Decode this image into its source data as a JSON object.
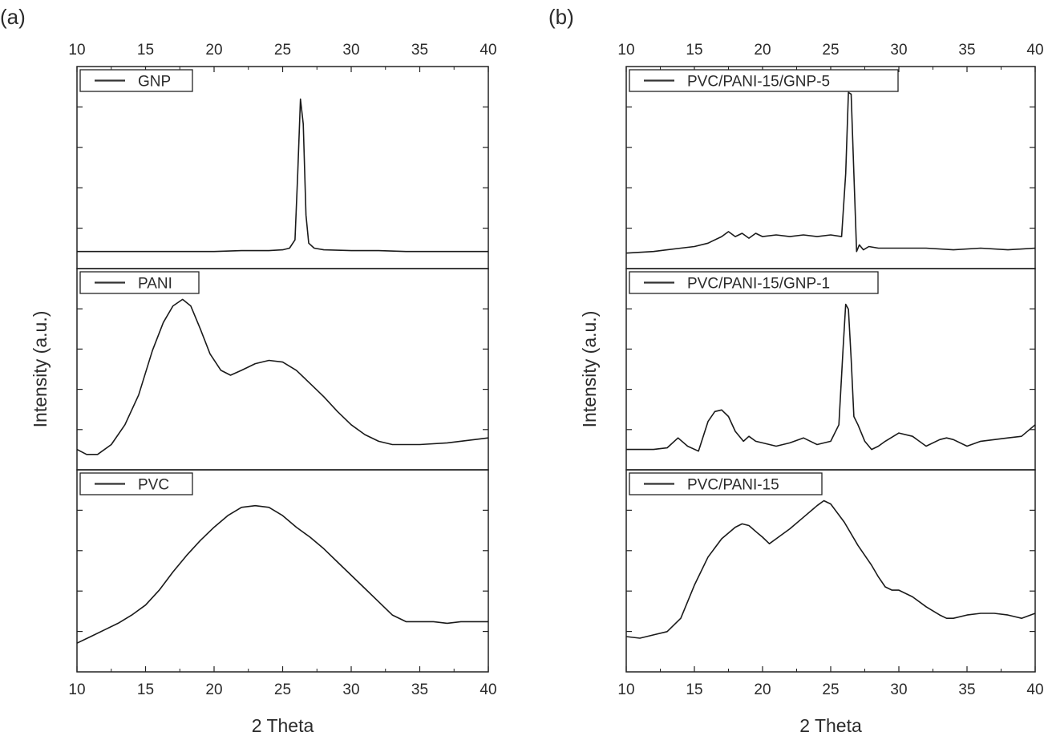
{
  "chart_data": [
    {
      "type": "line",
      "panel_label": "(a)",
      "xlabel": "2 Theta",
      "ylabel": "Intensity (a.u.)",
      "xlim": [
        10,
        40
      ],
      "x_ticks": [
        "10",
        "15",
        "20",
        "25",
        "30",
        "35",
        "40"
      ],
      "stacked": true,
      "series": [
        {
          "name": "GNP",
          "x": [
            10,
            12,
            14,
            16,
            18,
            20,
            22,
            24,
            25,
            25.5,
            25.9,
            26.1,
            26.3,
            26.5,
            26.7,
            26.9,
            27.3,
            28,
            30,
            32,
            34,
            36,
            38,
            40
          ],
          "y": [
            0.03,
            0.03,
            0.03,
            0.03,
            0.03,
            0.03,
            0.035,
            0.035,
            0.04,
            0.05,
            0.1,
            0.5,
            0.95,
            0.8,
            0.25,
            0.08,
            0.05,
            0.04,
            0.035,
            0.035,
            0.03,
            0.03,
            0.03,
            0.03
          ]
        },
        {
          "name": "PANI",
          "x": [
            10,
            10.7,
            11.5,
            12.5,
            13.5,
            14.5,
            15.5,
            16.3,
            17,
            17.7,
            18.3,
            19,
            19.7,
            20.5,
            21.2,
            22,
            23,
            24,
            25,
            26,
            27,
            28,
            29,
            30,
            31,
            32,
            33,
            35,
            37,
            40
          ],
          "y": [
            0.05,
            0.02,
            0.02,
            0.08,
            0.2,
            0.38,
            0.65,
            0.82,
            0.92,
            0.96,
            0.92,
            0.78,
            0.63,
            0.53,
            0.5,
            0.53,
            0.57,
            0.59,
            0.58,
            0.53,
            0.45,
            0.37,
            0.28,
            0.2,
            0.14,
            0.1,
            0.08,
            0.08,
            0.09,
            0.12
          ]
        },
        {
          "name": "PVC",
          "x": [
            10,
            11,
            12,
            13,
            14,
            15,
            16,
            17,
            18,
            19,
            20,
            21,
            22,
            23,
            24,
            25,
            26,
            27,
            28,
            29,
            30,
            31,
            32,
            33,
            34,
            35,
            36,
            37,
            38,
            40
          ],
          "y": [
            0.1,
            0.14,
            0.18,
            0.22,
            0.27,
            0.33,
            0.42,
            0.53,
            0.63,
            0.72,
            0.8,
            0.87,
            0.92,
            0.93,
            0.92,
            0.87,
            0.8,
            0.74,
            0.67,
            0.59,
            0.51,
            0.43,
            0.35,
            0.27,
            0.23,
            0.23,
            0.23,
            0.22,
            0.23,
            0.23
          ]
        }
      ]
    },
    {
      "type": "line",
      "panel_label": "(b)",
      "xlabel": "2 Theta",
      "ylabel": "Intensity (a.u.)",
      "xlim": [
        10,
        40
      ],
      "x_ticks": [
        "10",
        "15",
        "20",
        "25",
        "30",
        "35",
        "40"
      ],
      "stacked": true,
      "series": [
        {
          "name": "PVC/PANI-15/GNP-5",
          "x": [
            10,
            11,
            12,
            13,
            14,
            15,
            16,
            17,
            17.5,
            18,
            18.5,
            19,
            19.5,
            20,
            21,
            22,
            23,
            24,
            25,
            25.8,
            26.1,
            26.3,
            26.5,
            26.7,
            26.9,
            27.1,
            27.4,
            27.8,
            28.5,
            30,
            32,
            34,
            36,
            38,
            40
          ],
          "y": [
            0.02,
            0.025,
            0.03,
            0.04,
            0.05,
            0.06,
            0.08,
            0.12,
            0.15,
            0.12,
            0.14,
            0.11,
            0.14,
            0.12,
            0.13,
            0.12,
            0.13,
            0.12,
            0.13,
            0.12,
            0.5,
            0.99,
            0.98,
            0.5,
            0.03,
            0.07,
            0.04,
            0.06,
            0.05,
            0.05,
            0.05,
            0.04,
            0.05,
            0.04,
            0.05
          ]
        },
        {
          "name": "PVC/PANI-15/GNP-1",
          "x": [
            10,
            11,
            12,
            13,
            13.8,
            14.5,
            15.3,
            16,
            16.5,
            17,
            17.5,
            18,
            18.6,
            19,
            19.5,
            20,
            21,
            22,
            23,
            24,
            25,
            25.6,
            25.9,
            26.1,
            26.3,
            26.5,
            26.7,
            27,
            27.5,
            28,
            28.5,
            29,
            30,
            31,
            32,
            33,
            33.5,
            34,
            35,
            36,
            37,
            38,
            39,
            40
          ],
          "y": [
            0.05,
            0.05,
            0.05,
            0.06,
            0.12,
            0.07,
            0.04,
            0.22,
            0.28,
            0.29,
            0.25,
            0.16,
            0.1,
            0.13,
            0.1,
            0.09,
            0.07,
            0.09,
            0.12,
            0.08,
            0.1,
            0.2,
            0.65,
            0.93,
            0.9,
            0.6,
            0.25,
            0.2,
            0.1,
            0.05,
            0.07,
            0.1,
            0.15,
            0.13,
            0.07,
            0.11,
            0.12,
            0.11,
            0.07,
            0.1,
            0.11,
            0.12,
            0.13,
            0.2
          ]
        },
        {
          "name": "PVC/PANI-15",
          "x": [
            10,
            11,
            12,
            13,
            14,
            15,
            16,
            17,
            18,
            18.5,
            19,
            19.7,
            20,
            20.5,
            21,
            22,
            23,
            24,
            24.5,
            25,
            26,
            27,
            28,
            28.5,
            29,
            29.5,
            30,
            31,
            32,
            33,
            33.5,
            34,
            35,
            36,
            37,
            38,
            39,
            40
          ],
          "y": [
            0.14,
            0.13,
            0.15,
            0.17,
            0.25,
            0.45,
            0.62,
            0.73,
            0.8,
            0.82,
            0.81,
            0.76,
            0.74,
            0.7,
            0.73,
            0.79,
            0.86,
            0.93,
            0.96,
            0.94,
            0.83,
            0.69,
            0.57,
            0.5,
            0.44,
            0.42,
            0.42,
            0.38,
            0.32,
            0.27,
            0.25,
            0.25,
            0.27,
            0.28,
            0.28,
            0.27,
            0.25,
            0.28
          ]
        }
      ]
    }
  ]
}
